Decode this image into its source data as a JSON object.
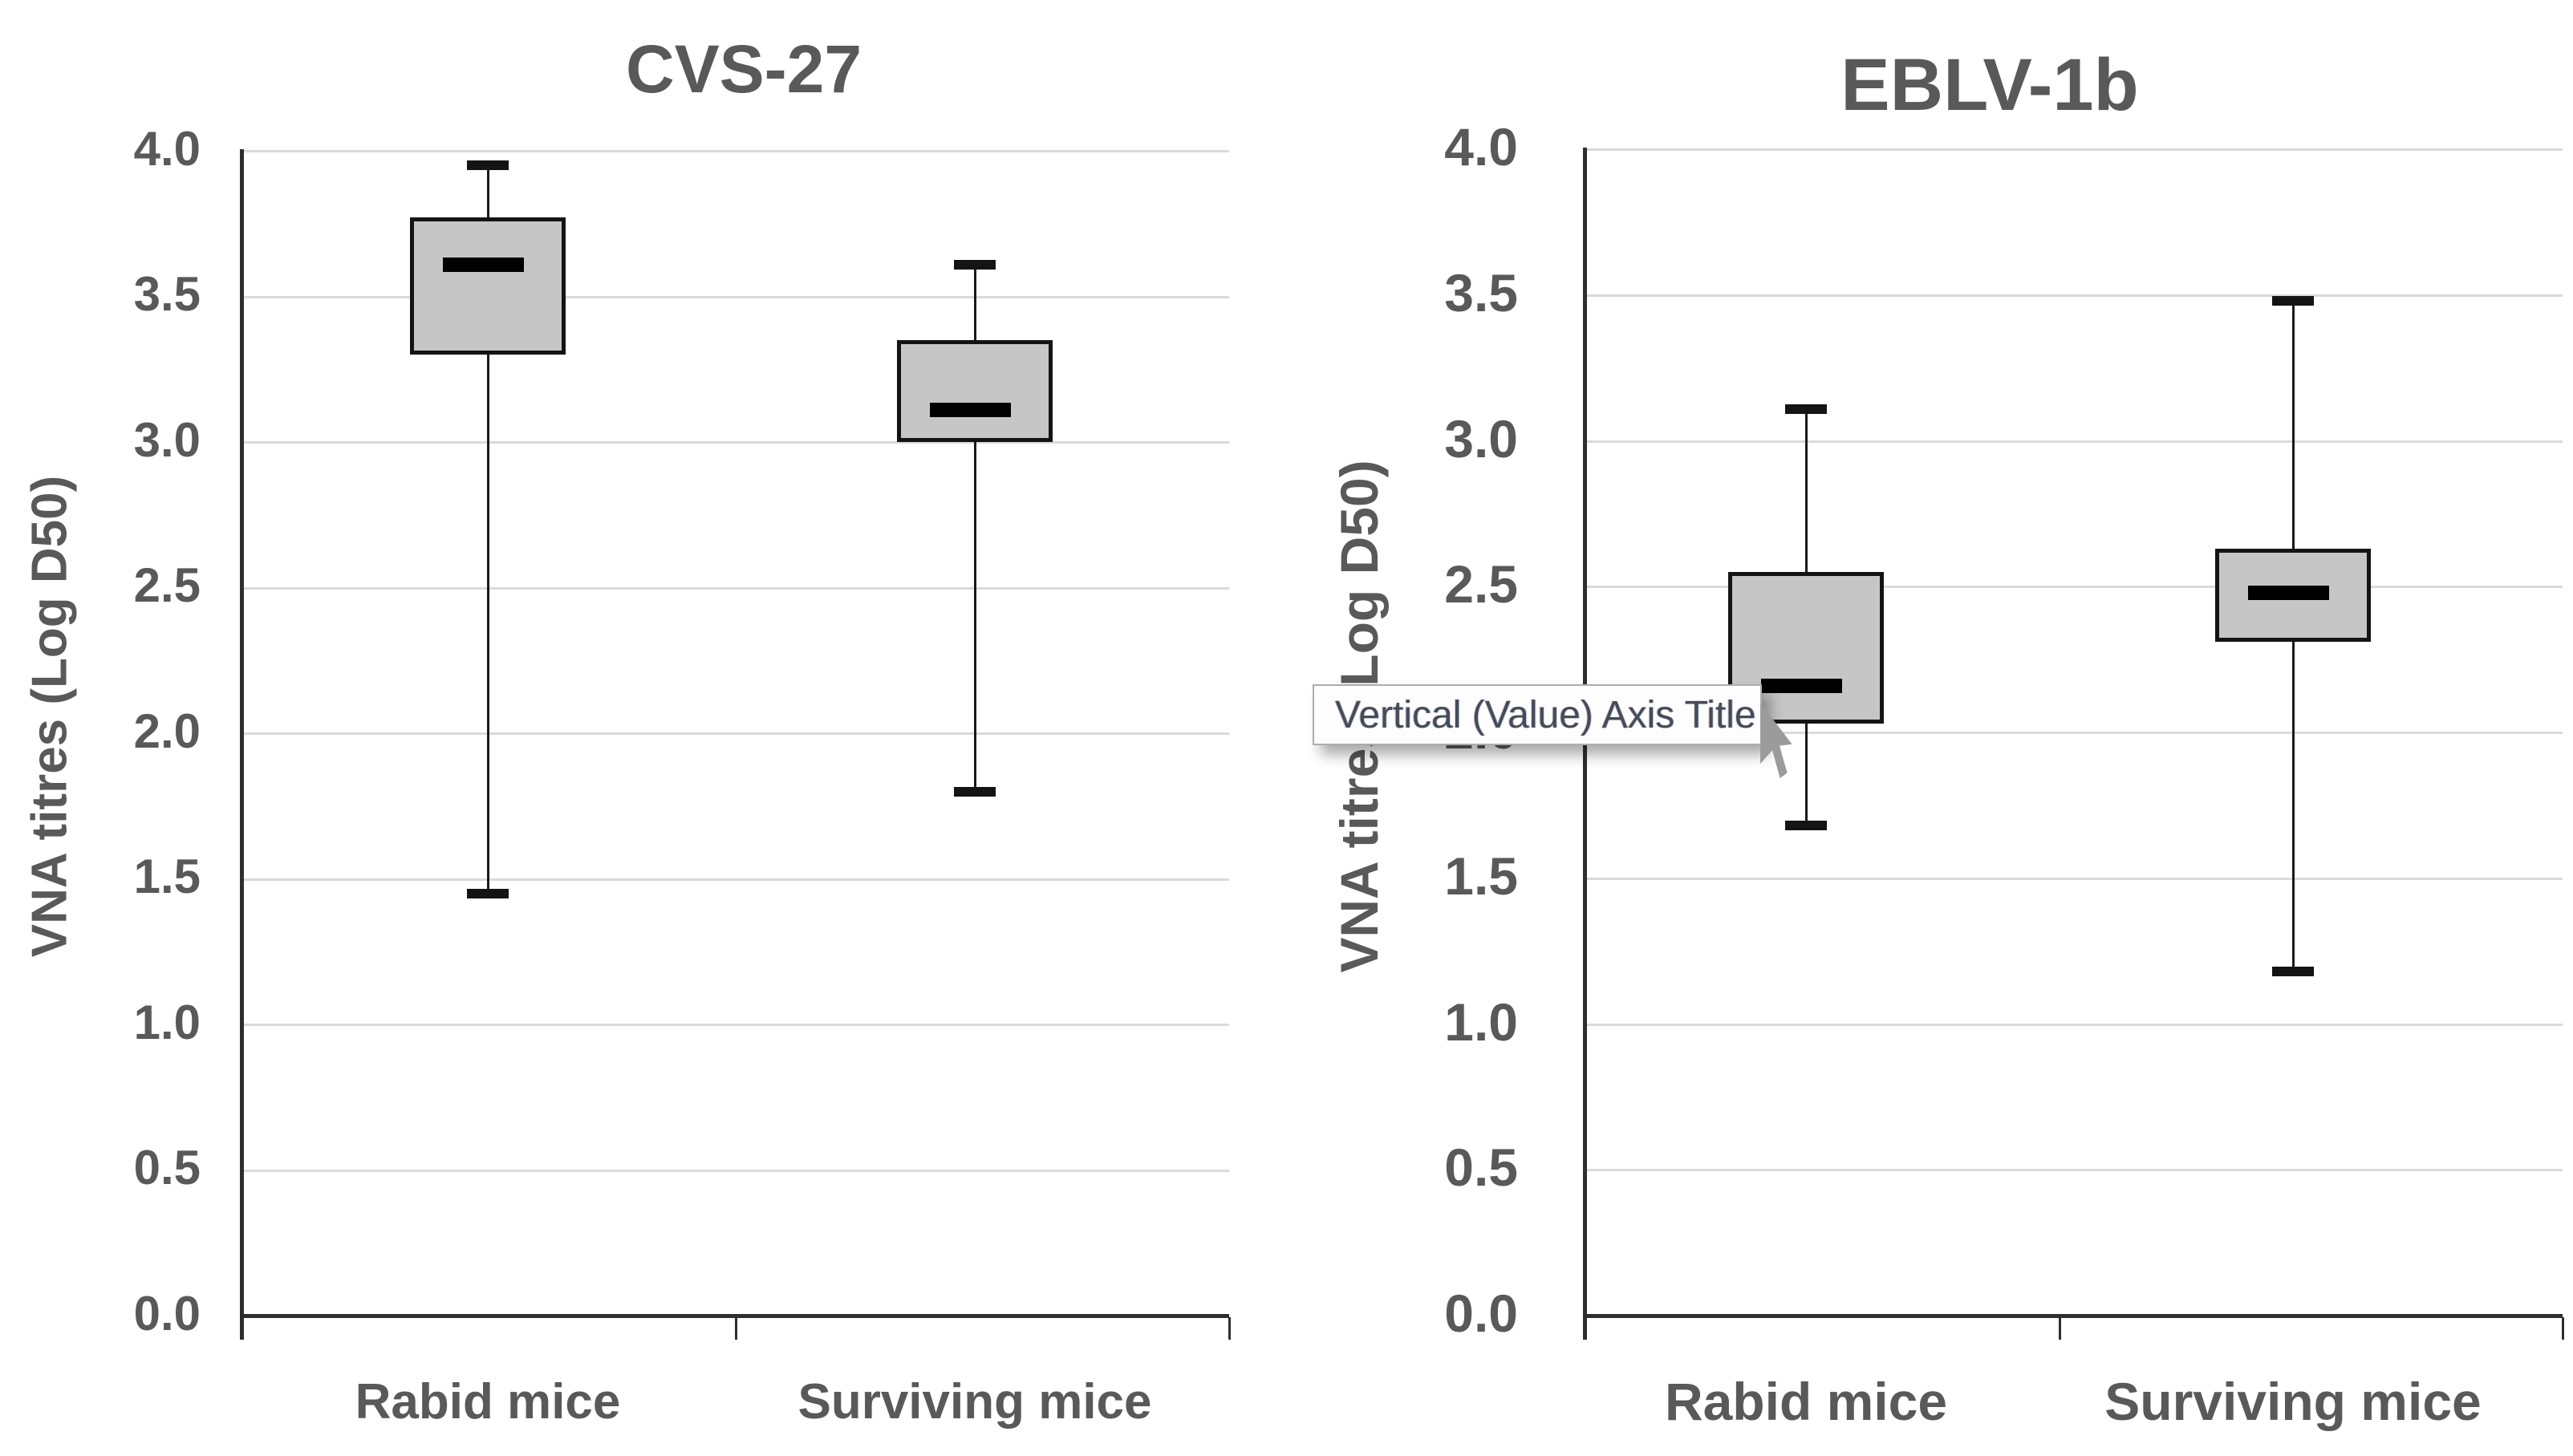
{
  "tooltip": {
    "text": "Vertical (Value) Axis Title"
  },
  "colors": {
    "box_fill": "#C6C6C6",
    "box_border": "#141414",
    "gridline": "#DADADA",
    "axis_line": "#2e2e2e",
    "label_text": "#595959",
    "tooltip_border": "#ADADAD",
    "tooltip_bg": "#FDFDFD"
  },
  "chart_data": [
    {
      "type": "boxplot",
      "title": "CVS-27",
      "ylabel": "VNA titres (Log D50)",
      "xlabel": "",
      "categories": [
        "Rabid mice",
        "Surviving mice"
      ],
      "ylim": [
        0.0,
        4.0
      ],
      "ytick_step": 0.5,
      "ytick_labels": [
        "4.0",
        "3.5",
        "3.0",
        "2.5",
        "2.0",
        "1.5",
        "1.0",
        "0.5",
        "0.0"
      ],
      "grid": true,
      "legend": "none",
      "series": [
        {
          "category": "Rabid mice",
          "min": 1.45,
          "q1": 3.3,
          "median": 3.61,
          "q3": 3.77,
          "max": 3.95
        },
        {
          "category": "Surviving mice",
          "min": 1.8,
          "q1": 3.0,
          "median": 3.11,
          "q3": 3.35,
          "max": 3.61
        }
      ]
    },
    {
      "type": "boxplot",
      "title": "EBLV-1b",
      "ylabel": "VNA titres (Log D50)",
      "xlabel": "",
      "categories": [
        "Rabid mice",
        "Surviving mice"
      ],
      "ylim": [
        0.0,
        4.0
      ],
      "ytick_step": 0.5,
      "ytick_labels": [
        "4.0",
        "3.5",
        "3.0",
        "2.5",
        "2.0",
        "1.5",
        "1.0",
        "0.5",
        "0.0"
      ],
      "grid": true,
      "legend": "none",
      "series": [
        {
          "category": "Rabid mice",
          "min": 1.68,
          "q1": 2.03,
          "median": 2.16,
          "q3": 2.55,
          "max": 3.11
        },
        {
          "category": "Surviving mice",
          "min": 1.18,
          "q1": 2.31,
          "median": 2.48,
          "q3": 2.63,
          "max": 3.48
        }
      ]
    }
  ]
}
